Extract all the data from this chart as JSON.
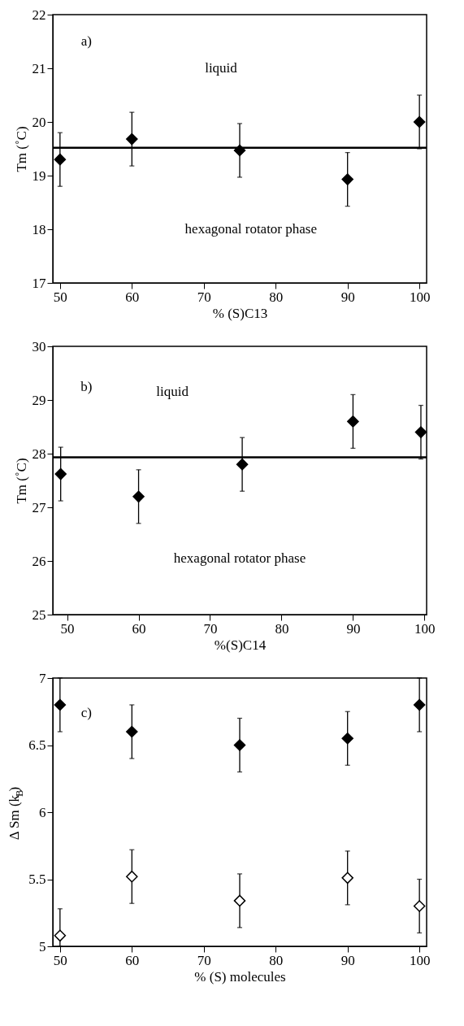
{
  "chart_data": [
    {
      "type": "scatter",
      "xlabel": "% (S)C13",
      "ylabel": "Tm (˚C)",
      "xlim": [
        49,
        101
      ],
      "ylim": [
        17,
        22
      ],
      "xticks": [
        50,
        60,
        70,
        80,
        90,
        100
      ],
      "yticks": [
        17,
        18,
        19,
        20,
        21,
        22
      ],
      "marker": "diamond",
      "grid": false,
      "annotations": [
        "a)",
        "liquid",
        "hexagonal rotator phase"
      ],
      "ref_lines": [
        {
          "axis": "y",
          "value": 19.52,
          "color": "#000000"
        }
      ],
      "series": [
        {
          "color": "#000000",
          "x": [
            50,
            60,
            75,
            90,
            100
          ],
          "values": [
            19.3,
            19.68,
            19.47,
            18.93,
            20.0
          ],
          "errors": [
            0.5,
            0.5,
            0.5,
            0.5,
            0.5
          ]
        }
      ]
    },
    {
      "type": "scatter",
      "xlabel": "%(S)C14",
      "ylabel": "Tm (˚C)",
      "xlim": [
        48,
        100.3
      ],
      "ylim": [
        25,
        30
      ],
      "xticks": [
        50,
        60,
        70,
        80,
        90,
        100
      ],
      "yticks": [
        25,
        26,
        27,
        28,
        29,
        30
      ],
      "marker": "diamond",
      "grid": false,
      "annotations": [
        "b)",
        "liquid",
        "hexagonal rotator phase"
      ],
      "ref_lines": [
        {
          "axis": "y",
          "value": 27.93,
          "color": "#000000"
        }
      ],
      "series": [
        {
          "color": "#000000",
          "x": [
            49.1,
            60,
            74.5,
            90,
            99.5
          ],
          "values": [
            27.62,
            27.2,
            27.8,
            28.6,
            28.4
          ],
          "errors": [
            0.5,
            0.5,
            0.5,
            0.5,
            0.5
          ]
        }
      ]
    },
    {
      "type": "scatter",
      "xlabel": "% (S) molecules",
      "ylabel": "Δ Sm (k$_{B}$)",
      "xlim": [
        49,
        101
      ],
      "ylim": [
        5,
        7
      ],
      "xticks": [
        50,
        60,
        70,
        80,
        90,
        100
      ],
      "yticks": [
        5,
        {
          "value": 5.5,
          "label": "5.5"
        },
        6,
        {
          "value": 6.5,
          "label": "6.5"
        },
        7
      ],
      "marker": "diamond",
      "grid": false,
      "annotations": [
        "c)"
      ],
      "series": [
        {
          "color": "#000000",
          "x": [
            50,
            60,
            75,
            90,
            100
          ],
          "values": [
            6.8,
            6.6,
            6.5,
            6.55,
            6.8
          ],
          "errors": [
            0.2,
            0.2,
            0.2,
            0.2,
            0.2
          ]
        },
        {
          "color": "#ffffff",
          "x": [
            50,
            60,
            75,
            90,
            100
          ],
          "values": [
            5.08,
            5.52,
            5.34,
            5.51,
            5.3
          ],
          "errors": [
            [
              5.0,
              5.28
            ],
            0.2,
            0.2,
            0.2,
            0.2
          ]
        }
      ]
    }
  ]
}
